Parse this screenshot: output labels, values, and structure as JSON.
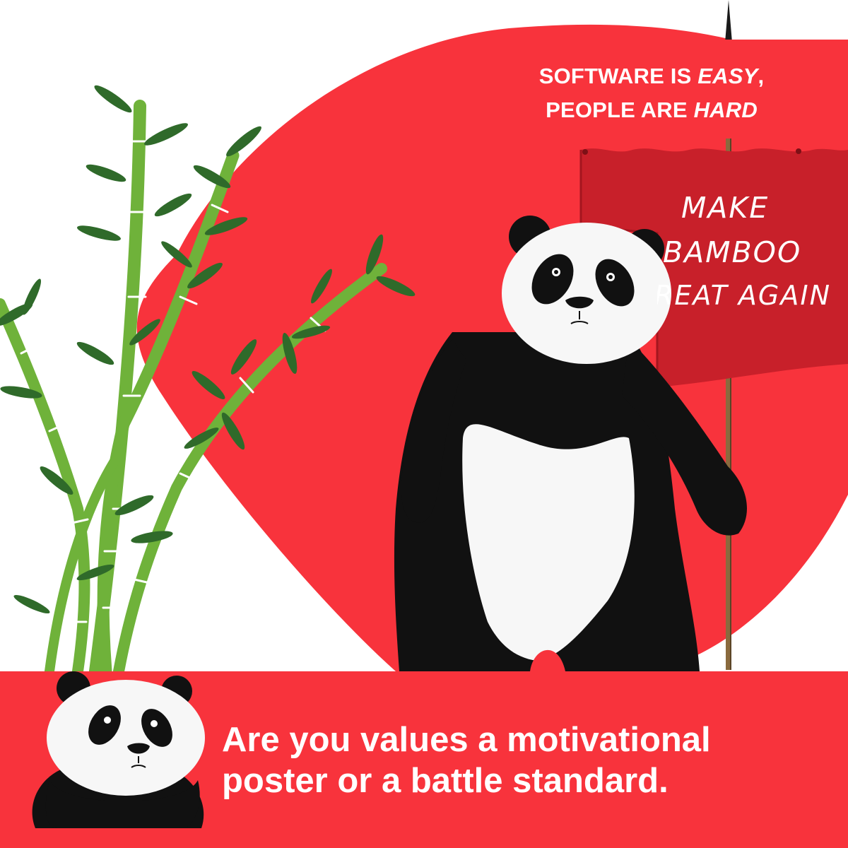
{
  "palette": {
    "accent_red": "#f8333c",
    "flag_red": "#c8202a",
    "bamboo_green": "#6fb23a",
    "leaf_green": "#2f6a2a",
    "panda_black": "#111111",
    "panda_white": "#f7f7f7"
  },
  "top_banner": {
    "line1_prefix": "SOFTWARE IS ",
    "line1_emphasis": "EASY",
    "line1_suffix": ",",
    "line2_prefix": "PEOPLE ARE ",
    "line2_emphasis": "HARD"
  },
  "flag": {
    "line1": "MAKE",
    "line2": "BAMBOO",
    "line3": "REAT AGAIN"
  },
  "caption": {
    "line1": "Are you values a motivational",
    "line2": "poster or a battle standard."
  },
  "icons": {
    "bamboo": "bamboo-icon",
    "panda": "panda-icon",
    "flag": "flag-icon",
    "avatar": "panda-face-icon"
  }
}
